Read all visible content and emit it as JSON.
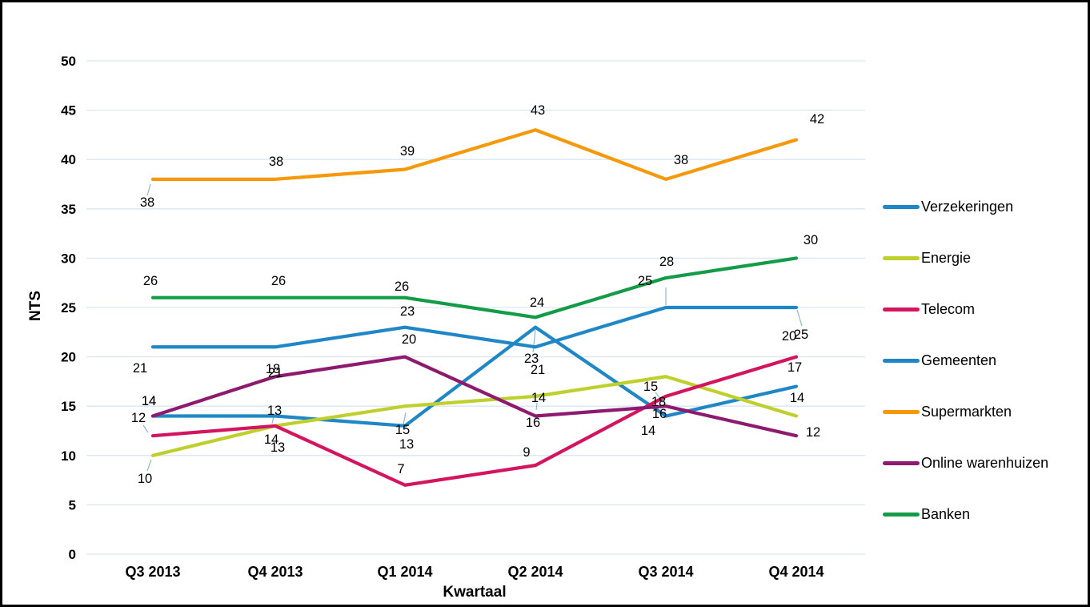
{
  "chart_data": {
    "type": "line",
    "categories": [
      "Q3 2013",
      "Q4 2013",
      "Q1 2014",
      "Q2 2014",
      "Q3 2014",
      "Q4 2014"
    ],
    "series": [
      {
        "name": "Verzekeringen",
        "color": "#1F87C6",
        "values": [
          14,
          14,
          13,
          23,
          14,
          17
        ]
      },
      {
        "name": "Energie",
        "color": "#BFD02D",
        "values": [
          10,
          13,
          15,
          16,
          18,
          14
        ]
      },
      {
        "name": "Telecom",
        "color": "#D3145F",
        "values": [
          12,
          13,
          7,
          9,
          16,
          20
        ]
      },
      {
        "name": "Gemeenten",
        "color": "#1F87C6",
        "values": [
          21,
          21,
          23,
          21,
          25,
          25
        ]
      },
      {
        "name": "Supermarkten",
        "color": "#F5990B",
        "values": [
          38,
          38,
          39,
          43,
          38,
          42
        ]
      },
      {
        "name": "Online warenhuizen",
        "color": "#8E1A6F",
        "values": [
          14,
          18,
          20,
          14,
          15,
          12
        ]
      },
      {
        "name": "Banken",
        "color": "#139B48",
        "values": [
          26,
          26,
          26,
          24,
          28,
          30
        ]
      }
    ],
    "title": "",
    "xlabel": "Kwartaal",
    "ylabel": "NTS",
    "ylim": [
      0,
      50
    ],
    "ytick_step": 5,
    "grid": true,
    "data_labels": true,
    "legend_position": "right"
  },
  "colors": {
    "gridline": "#D9E6F3",
    "leader_line": "#8FB3D4",
    "text": "#000000",
    "background": "#FFFFFF",
    "frame_border": "#000000"
  }
}
